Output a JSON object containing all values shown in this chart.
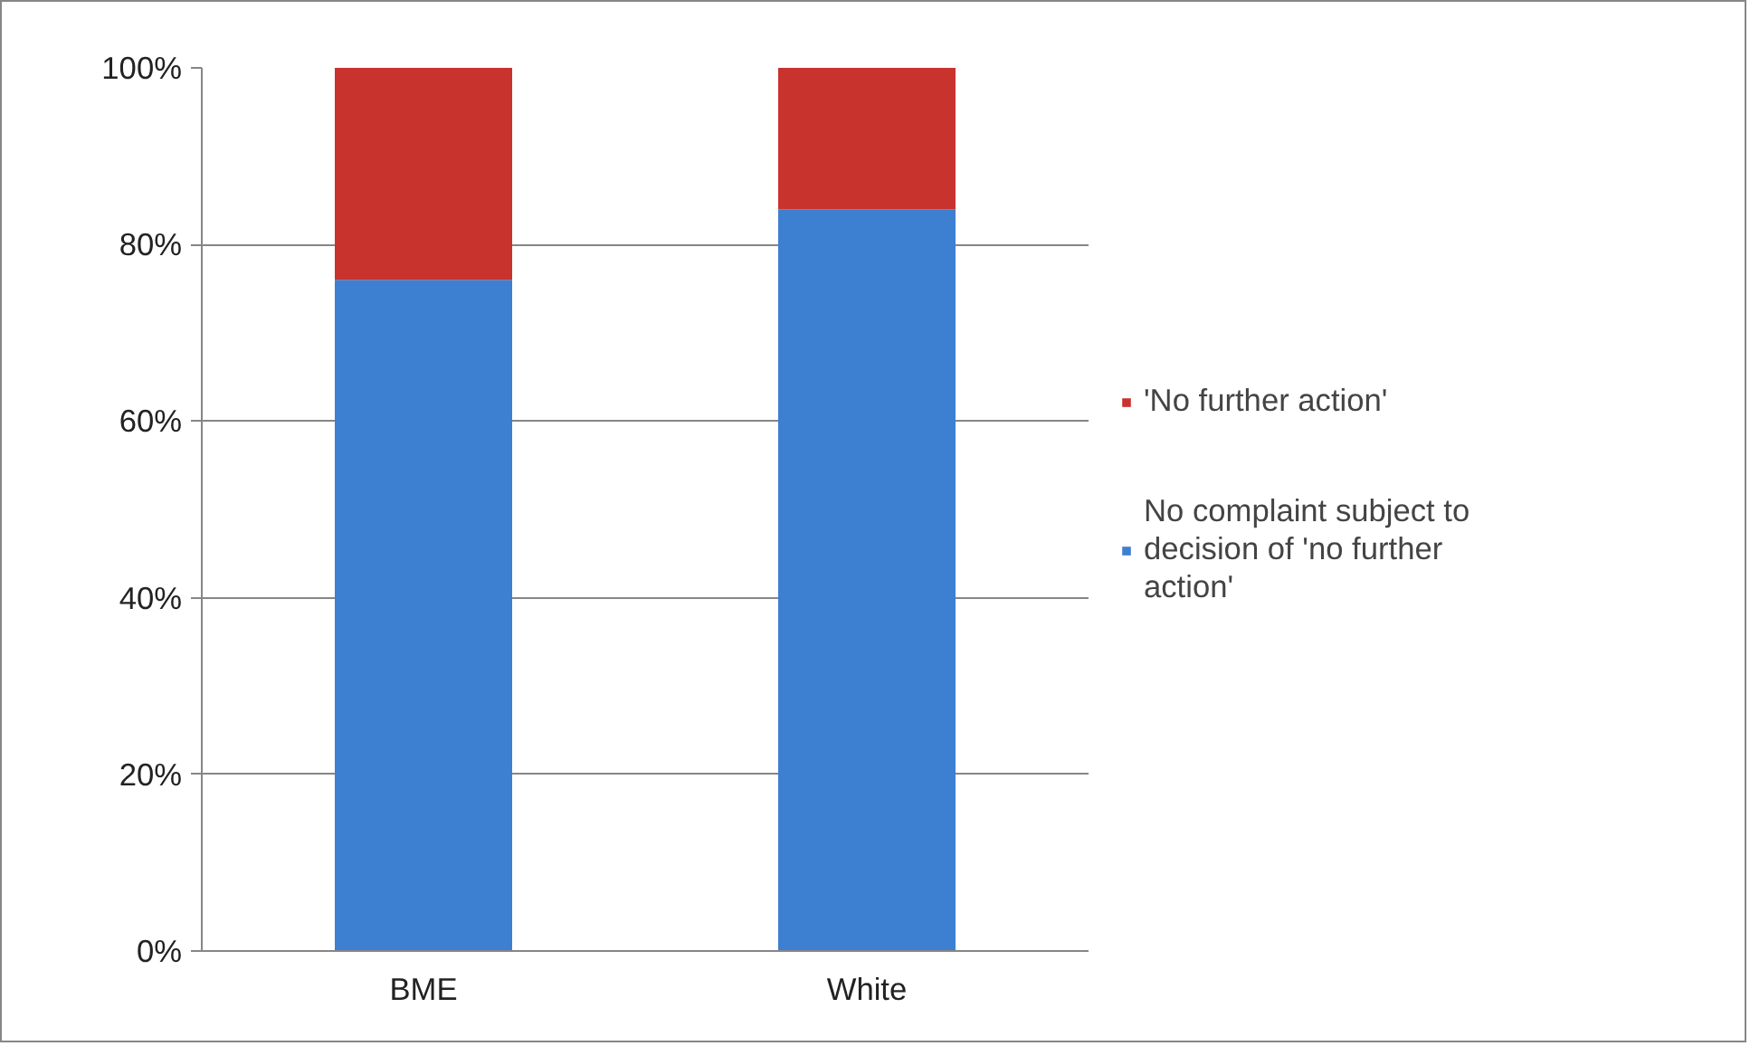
{
  "chart_data": {
    "type": "bar",
    "stacked": true,
    "categories": [
      "BME",
      "White"
    ],
    "series": [
      {
        "name": "No complaint subject to decision of 'no further action'",
        "color": "#3d7fd0",
        "values": [
          76,
          84
        ]
      },
      {
        "name": "'No further action'",
        "color": "#c8332e",
        "values": [
          24,
          16
        ]
      }
    ],
    "ylim": [
      0,
      100
    ],
    "yticks": [
      {
        "value": 0,
        "label": "0%"
      },
      {
        "value": 20,
        "label": "20%"
      },
      {
        "value": 40,
        "label": "40%"
      },
      {
        "value": 60,
        "label": "60%"
      },
      {
        "value": 80,
        "label": "80%"
      },
      {
        "value": 100,
        "label": "100%"
      }
    ],
    "grid": "y",
    "legend": "right"
  }
}
